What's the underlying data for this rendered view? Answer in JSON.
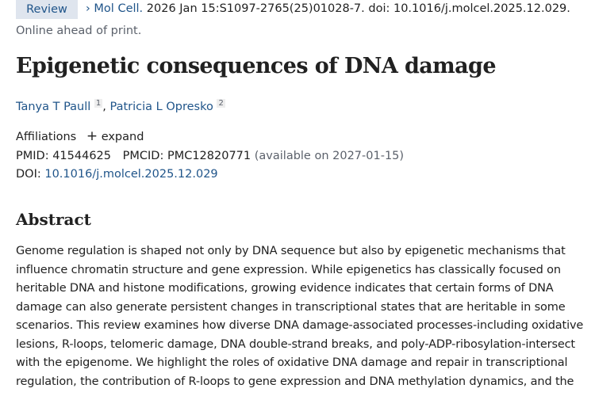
{
  "header": {
    "badge": "Review",
    "journal": "Mol Cell.",
    "citation": " 2026 Jan 15:S1097-2765(25)01028-7. doi: 10.1016/j.molcel.2025.12.029.",
    "status": "Online ahead of print."
  },
  "title": "Epigenetic consequences of DNA damage",
  "authors": [
    {
      "name": "Tanya T Paull",
      "affil": "1"
    },
    {
      "name": "Patricia L Opresko",
      "affil": "2"
    }
  ],
  "affiliations": {
    "label": "Affiliations",
    "expand_label": "expand"
  },
  "ids": {
    "pmid_label": "PMID:",
    "pmid": "41544625",
    "pmcid_label": "PMCID:",
    "pmcid": "PMC12820771",
    "pmcid_note": "(available on 2027-01-15)",
    "doi_label": "DOI:",
    "doi": "10.1016/j.molcel.2025.12.029"
  },
  "abstract": {
    "heading": "Abstract",
    "lines": [
      "Genome regulation is shaped not only by DNA sequence but also by epigenetic mechanisms that",
      "influence chromatin structure and gene expression. While epigenetics has classically focused on",
      "heritable DNA and histone modifications, growing evidence indicates that certain forms of DNA",
      "damage can also generate persistent changes in transcriptional states that are heritable in some",
      "scenarios. This review examines how diverse DNA damage-associated processes-including oxidative",
      "lesions, R-loops, telomeric damage, DNA double-strand breaks, and poly-ADP-ribosylation-intersect",
      "with the epigenome. We highlight the roles of oxidative DNA damage and repair in transcriptional",
      "regulation, the contribution of R-loops to gene expression and DNA methylation dynamics, and the"
    ]
  }
}
